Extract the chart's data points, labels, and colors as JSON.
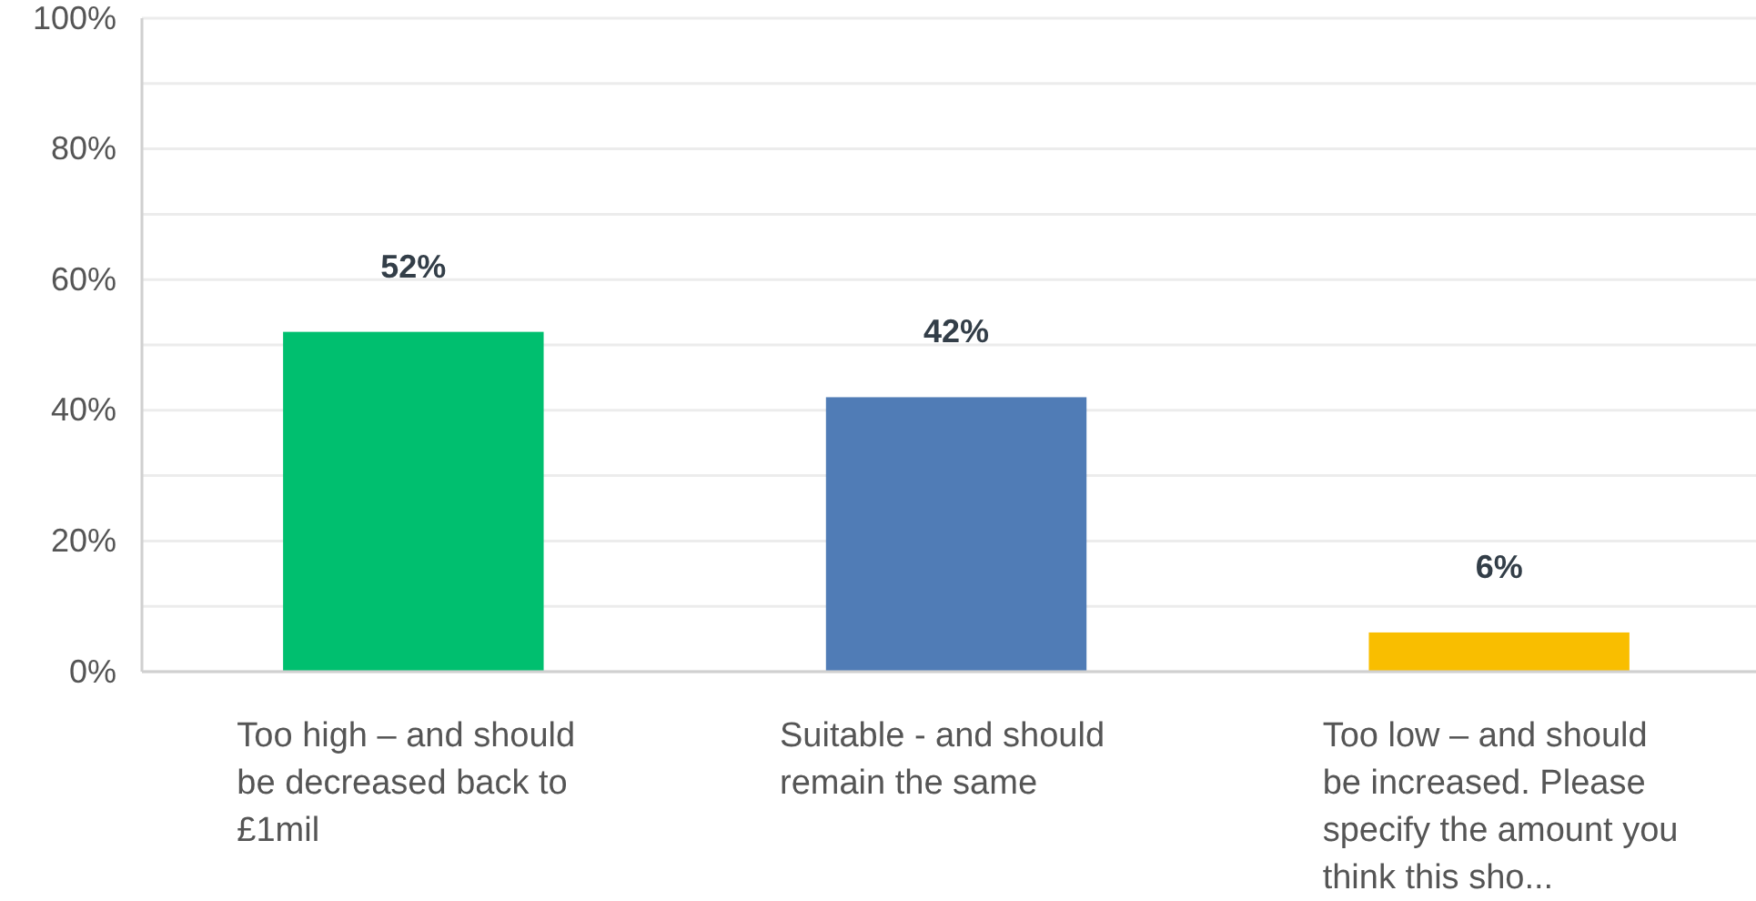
{
  "chart_data": {
    "type": "bar",
    "categories": [
      "Too high – and should be decreased back to £1mil",
      "Suitable - and should remain the same",
      "Too low – and should be increased. Please specify the amount you think this sho..."
    ],
    "values": [
      52,
      42,
      6
    ],
    "colors": [
      "#00bf6f",
      "#507cb6",
      "#f9be00"
    ],
    "value_labels": [
      "52%",
      "42%",
      "6%"
    ],
    "ylim": [
      0,
      100
    ],
    "yticks": [
      {
        "value": 0,
        "label": "0%"
      },
      {
        "value": 10,
        "label": null
      },
      {
        "value": 20,
        "label": "20%"
      },
      {
        "value": 30,
        "label": null
      },
      {
        "value": 40,
        "label": "40%"
      },
      {
        "value": 50,
        "label": null
      },
      {
        "value": 60,
        "label": "60%"
      },
      {
        "value": 70,
        "label": null
      },
      {
        "value": 80,
        "label": "80%"
      },
      {
        "value": 90,
        "label": null
      },
      {
        "value": 100,
        "label": "100%"
      }
    ],
    "grid": "y"
  }
}
